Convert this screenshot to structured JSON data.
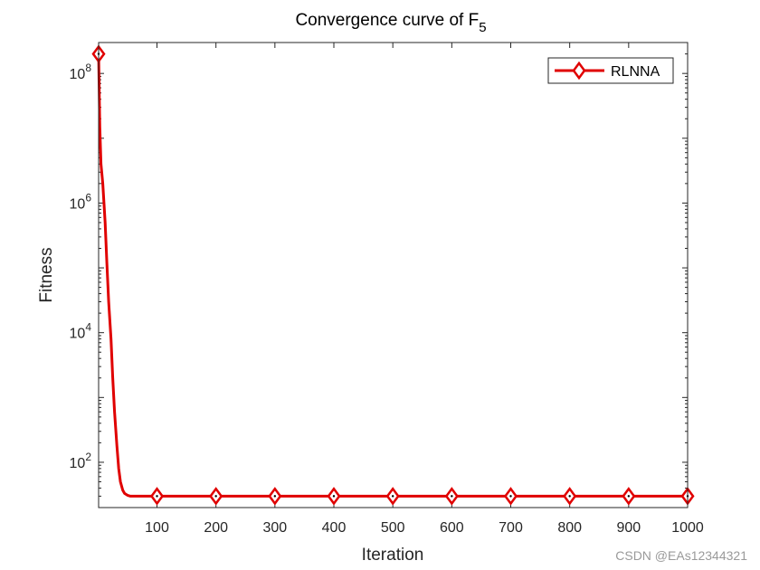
{
  "chart_data": {
    "type": "line",
    "title": "Convergence curve of F",
    "title_subscript": "5",
    "xlabel": "Iteration",
    "ylabel": "Fitness",
    "xlim": [
      1,
      1000
    ],
    "ylim": [
      20,
      300000000
    ],
    "y_scale": "log",
    "x_ticks": [
      100,
      200,
      300,
      400,
      500,
      600,
      700,
      800,
      900,
      1000
    ],
    "y_ticks": [
      {
        "value": 100,
        "base": "10",
        "exp": "2"
      },
      {
        "value": 10000,
        "base": "10",
        "exp": "4"
      },
      {
        "value": 1000000,
        "base": "10",
        "exp": "6"
      },
      {
        "value": 100000000,
        "base": "10",
        "exp": "8"
      }
    ],
    "grid": false,
    "legend_position": "top-right",
    "series": [
      {
        "name": "RLNNA",
        "color": "#e00000",
        "marker": "diamond",
        "x": [
          1,
          3,
          5,
          8,
          10,
          12,
          15,
          18,
          22,
          25,
          28,
          32,
          35,
          38,
          42,
          45,
          50,
          55,
          60,
          100,
          200,
          300,
          400,
          500,
          600,
          700,
          800,
          900,
          1000
        ],
        "y": [
          200000000,
          15000000,
          4000000,
          2000000,
          1000000,
          500000,
          120000,
          30000,
          8000,
          2000,
          600,
          180,
          80,
          50,
          37,
          33,
          31,
          30,
          30,
          30,
          30,
          30,
          30,
          30,
          30,
          30,
          30,
          30,
          30
        ],
        "marker_x": [
          1,
          100,
          200,
          300,
          400,
          500,
          600,
          700,
          800,
          900,
          1000
        ]
      }
    ]
  },
  "watermark": "CSDN @EAs12344321"
}
